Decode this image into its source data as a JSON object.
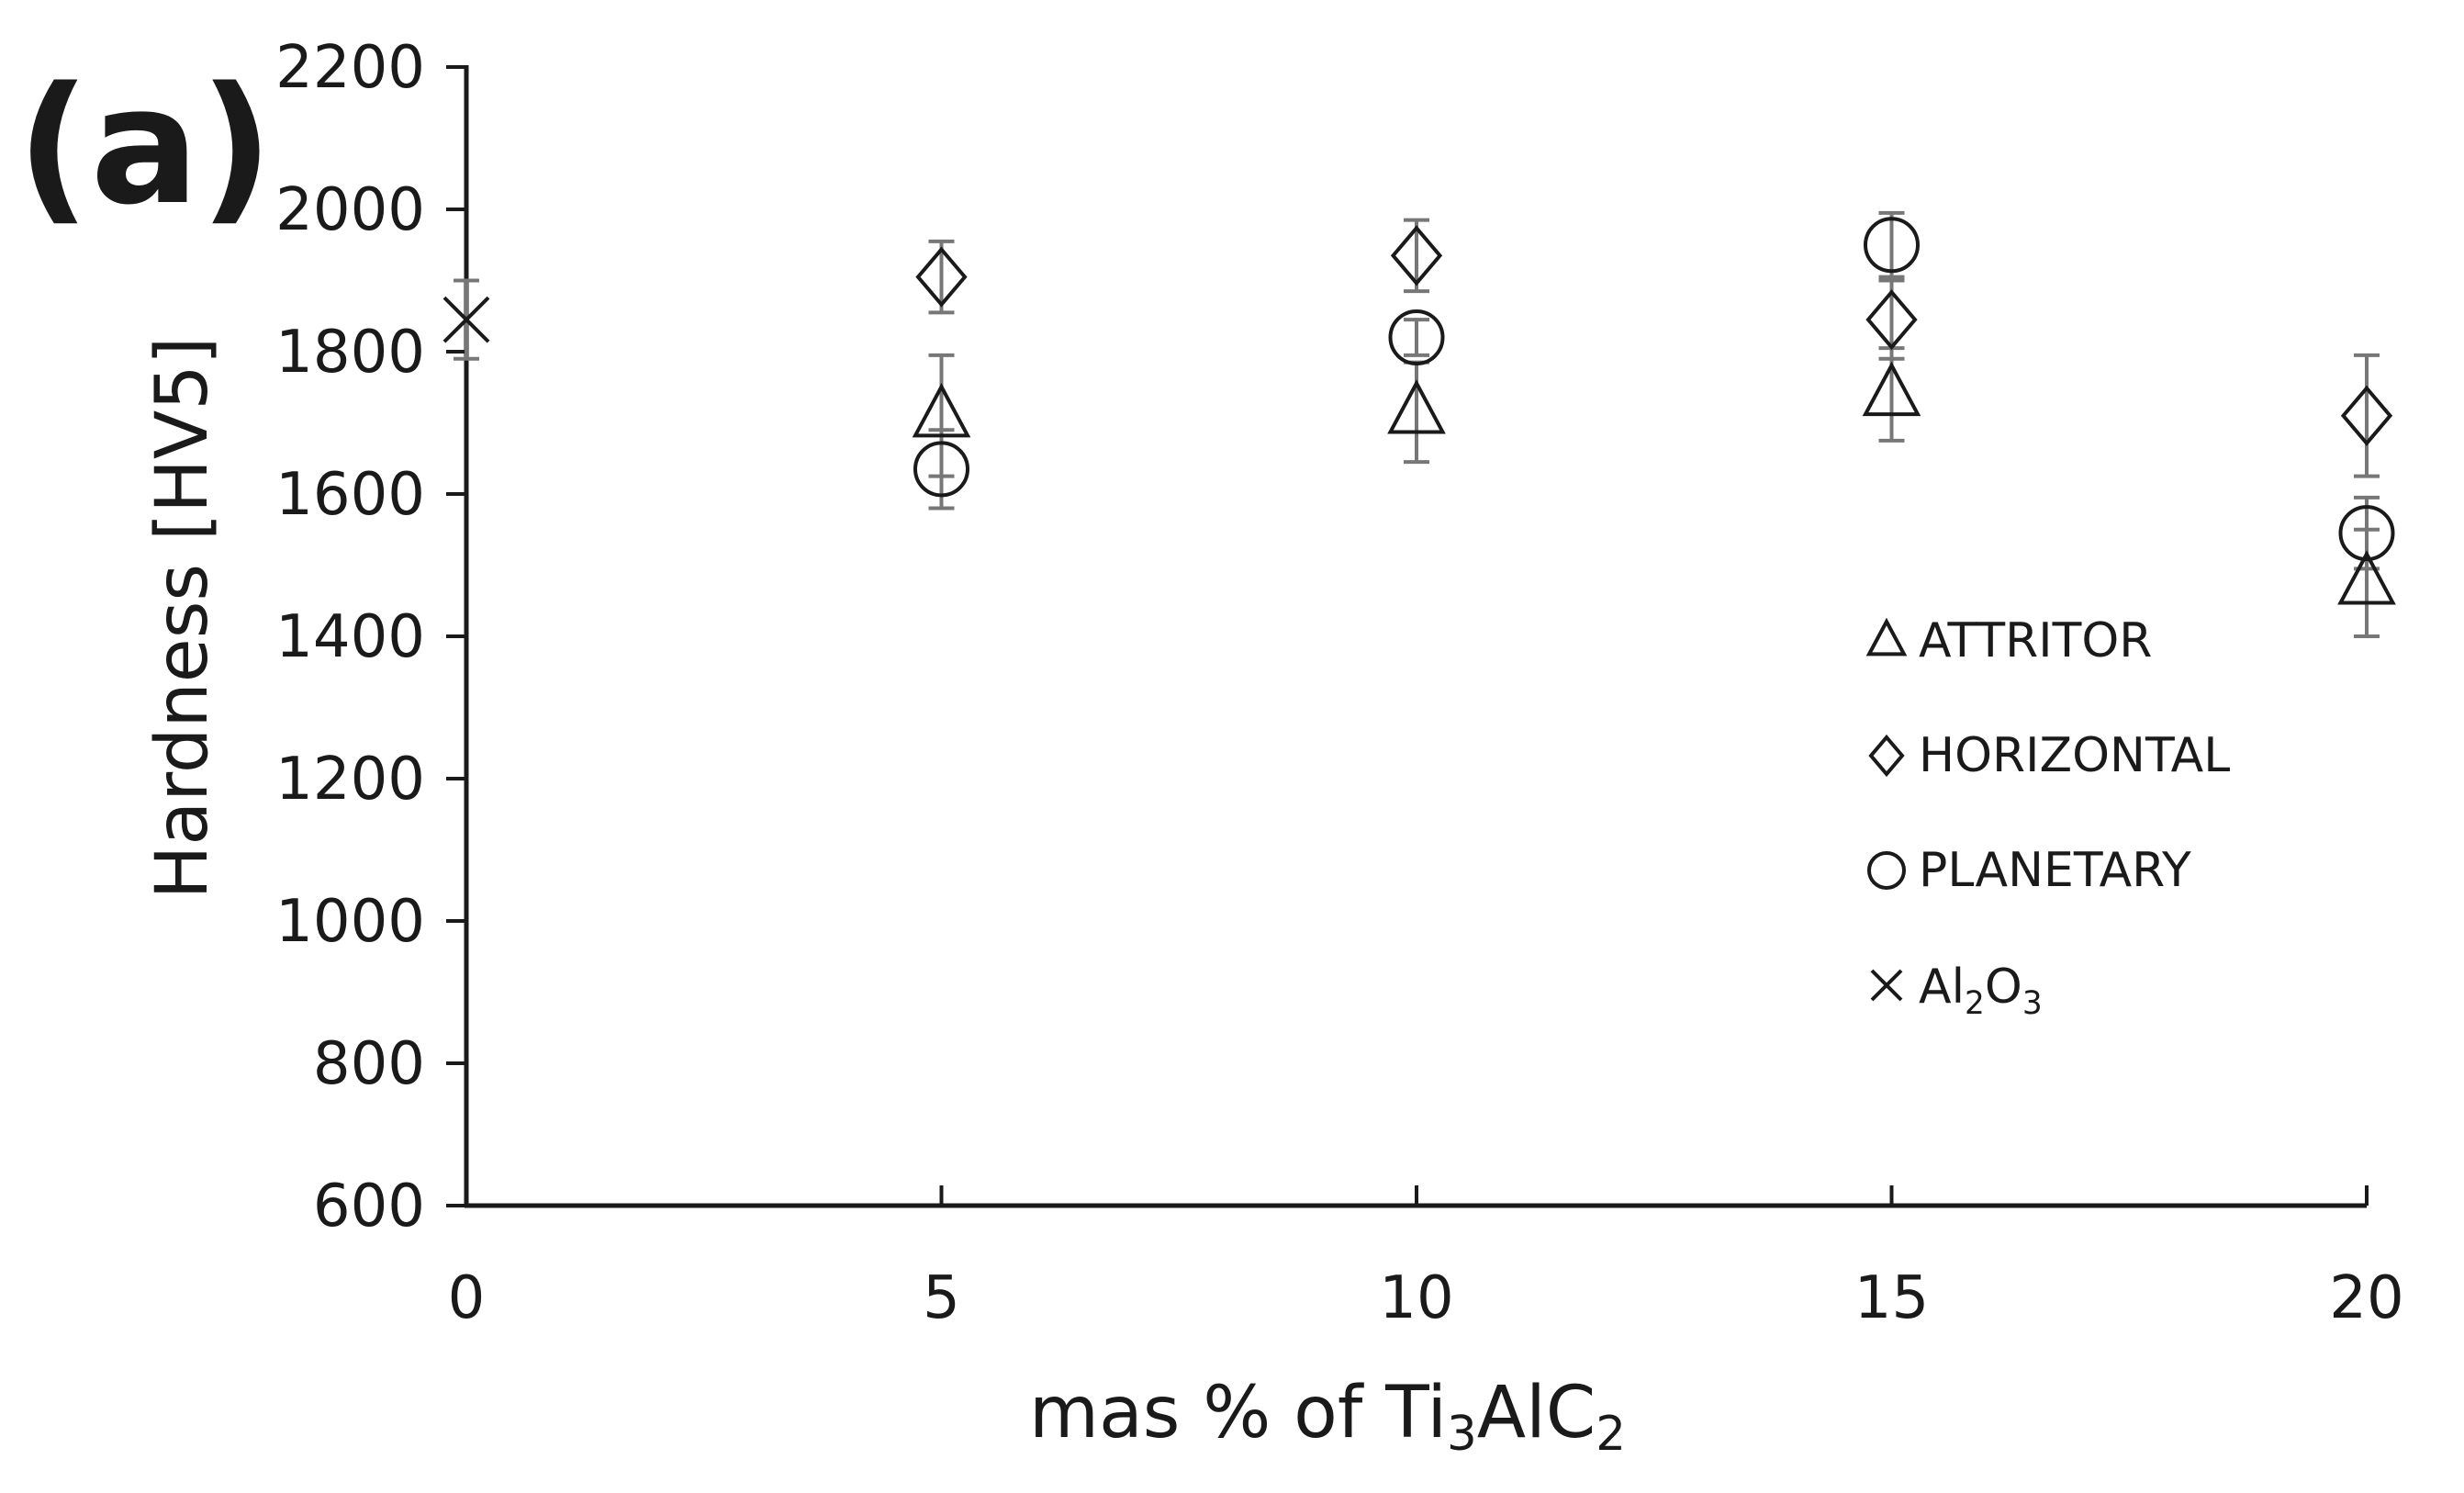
{
  "panel_label": "(a)",
  "chart_data": {
    "type": "scatter",
    "xlabel": {
      "main": "mas % of Ti",
      "sub1": "3",
      "mid": "AlC",
      "sub2": "2"
    },
    "ylabel": "Hardness [HV5]",
    "xlim": [
      0,
      20
    ],
    "ylim": [
      600,
      2200
    ],
    "x_ticks": [
      0,
      5,
      10,
      15,
      20
    ],
    "y_ticks": [
      600,
      800,
      1000,
      1200,
      1400,
      1600,
      1800,
      2000,
      2200
    ],
    "grid": false,
    "legend_position": "right",
    "series": [
      {
        "name": "ATTRITOR",
        "marker": "triangle",
        "x": [
          5,
          10,
          15,
          20
        ],
        "y": [
          1710,
          1715,
          1740,
          1475
        ],
        "err": [
          85,
          70,
          65,
          75
        ]
      },
      {
        "name": "HORIZONTAL",
        "marker": "diamond",
        "x": [
          5,
          10,
          15,
          20
        ],
        "y": [
          1905,
          1935,
          1845,
          1710
        ],
        "err": [
          50,
          50,
          55,
          85
        ]
      },
      {
        "name": "PLANETARY",
        "marker": "circle",
        "x": [
          5,
          10,
          15,
          20
        ],
        "y": [
          1635,
          1820,
          1950,
          1545
        ],
        "err": [
          55,
          25,
          45,
          50
        ]
      },
      {
        "name": "Al2O3",
        "name_parts": {
          "a": "Al",
          "s1": "2",
          "b": "O",
          "s2": "3"
        },
        "marker": "cross",
        "x": [
          0
        ],
        "y": [
          1845
        ],
        "err": [
          55
        ]
      }
    ],
    "colors": {
      "axis": "#1a1a1a",
      "marker": "#1a1a1a",
      "errorbar": "#777777"
    }
  }
}
